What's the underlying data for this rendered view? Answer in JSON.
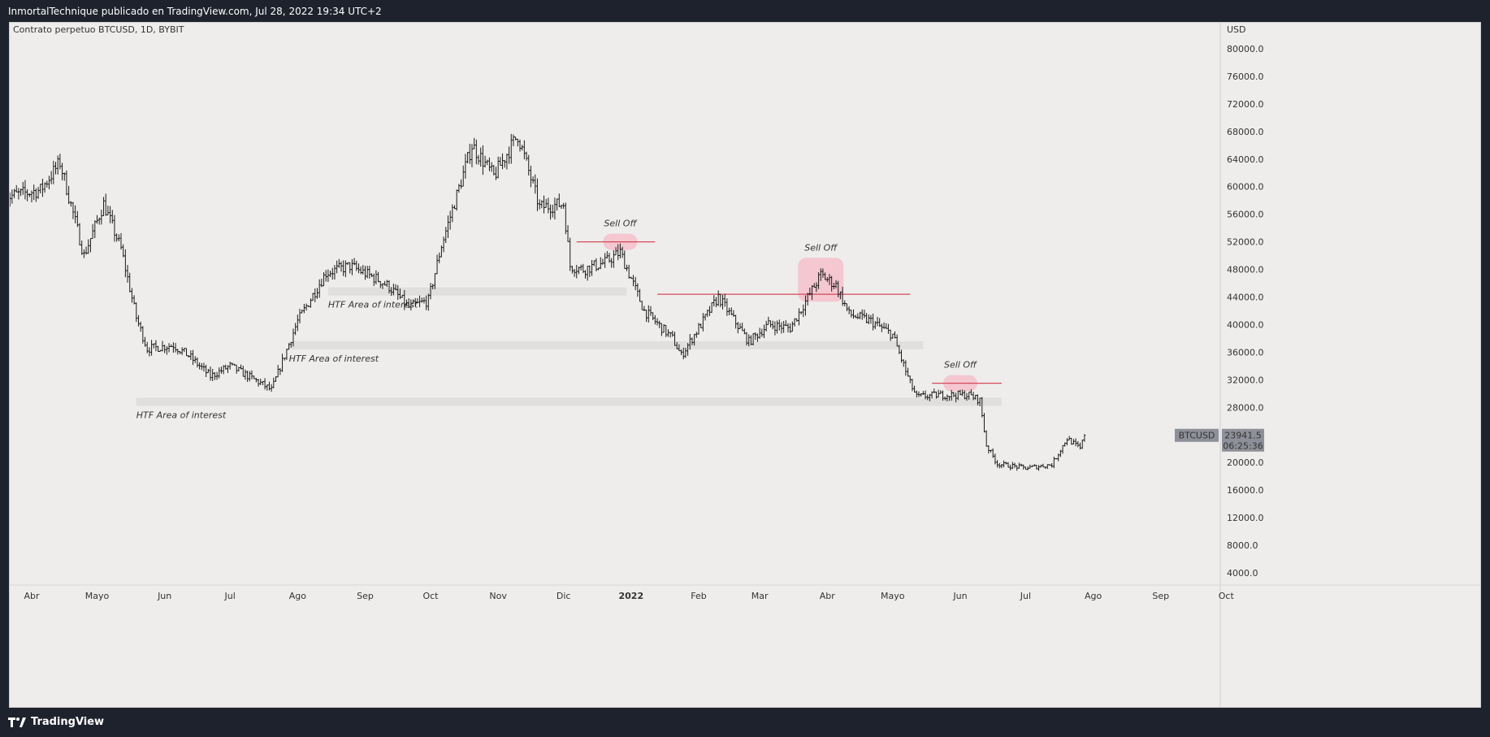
{
  "header": {
    "publisher_line": "InmortalTechnique publicado en TradingView.com, Jul 28, 2022 19:34 UTC+2"
  },
  "footer": {
    "brand": "TradingView",
    "brand_icon": "tradingview-logo-icon"
  },
  "chart_data": {
    "type": "line",
    "instrument_label": "Contrato perpetuo BTCUSD, 1D, BYBIT",
    "currency": "USD",
    "ylim": [
      0,
      84000
    ],
    "y_ticks": [
      4000,
      8000,
      12000,
      16000,
      20000,
      24000,
      28000,
      32000,
      36000,
      40000,
      44000,
      48000,
      52000,
      56000,
      60000,
      64000,
      68000,
      72000,
      76000,
      80000
    ],
    "y_tick_labels": [
      "4000.0",
      "8000.0",
      "12000.0",
      "16000.0",
      "20000.0",
      "",
      "28000.0",
      "32000.0",
      "36000.0",
      "40000.0",
      "44000.0",
      "48000.0",
      "52000.0",
      "56000.0",
      "60000.0",
      "64000.0",
      "68000.0",
      "72000.0",
      "76000.0",
      "80000.0"
    ],
    "x_ticks": [
      "2021-04-01",
      "2021-05-01",
      "2021-06-01",
      "2021-07-01",
      "2021-08-01",
      "2021-09-01",
      "2021-10-01",
      "2021-11-01",
      "2021-12-01",
      "2022-01-01",
      "2022-02-01",
      "2022-03-01",
      "2022-04-01",
      "2022-05-01",
      "2022-06-01",
      "2022-07-01",
      "2022-08-01",
      "2022-09-01",
      "2022-10-01"
    ],
    "x_tick_labels": [
      "Abr",
      "Mayo",
      "Jun",
      "Jul",
      "Ago",
      "Sep",
      "Oct",
      "Nov",
      "Dic",
      "2022",
      "Feb",
      "Mar",
      "Abr",
      "Mayo",
      "Jun",
      "Jul",
      "Ago",
      "Sep",
      "Oct"
    ],
    "x_bold_tick": "2022",
    "price_series": {
      "name": "BTCUSD",
      "x": [
        "2021-03-20",
        "2021-04-05",
        "2021-04-14",
        "2021-04-25",
        "2021-05-04",
        "2021-05-12",
        "2021-05-19",
        "2021-05-24",
        "2021-06-05",
        "2021-06-12",
        "2021-06-22",
        "2021-07-01",
        "2021-07-15",
        "2021-07-20",
        "2021-08-01",
        "2021-08-14",
        "2021-08-25",
        "2021-09-07",
        "2021-09-12",
        "2021-09-21",
        "2021-09-30",
        "2021-10-06",
        "2021-10-20",
        "2021-10-30",
        "2021-11-10",
        "2021-11-20",
        "2021-12-01",
        "2021-12-04",
        "2021-12-10",
        "2021-12-20",
        "2021-12-27",
        "2022-01-07",
        "2022-01-20",
        "2022-01-24",
        "2022-02-10",
        "2022-02-24",
        "2022-03-05",
        "2022-03-15",
        "2022-03-29",
        "2022-04-05",
        "2022-04-11",
        "2022-04-21",
        "2022-05-01",
        "2022-05-09",
        "2022-05-12",
        "2022-05-22",
        "2022-06-05",
        "2022-06-10",
        "2022-06-13",
        "2022-06-18",
        "2022-07-01",
        "2022-07-13",
        "2022-07-20",
        "2022-07-26",
        "2022-07-28"
      ],
      "values": [
        58500,
        59500,
        63500,
        50000,
        57500,
        51000,
        41000,
        36500,
        37000,
        35500,
        32500,
        34000,
        31500,
        30500,
        40500,
        47500,
        48500,
        46500,
        45500,
        42500,
        43500,
        51500,
        66000,
        61500,
        67500,
        57000,
        57500,
        48500,
        48000,
        49000,
        50500,
        42000,
        38000,
        35500,
        44000,
        37500,
        40000,
        39500,
        47200,
        45700,
        41500,
        40500,
        38500,
        31500,
        29500,
        29800,
        29800,
        29000,
        22500,
        19800,
        19200,
        19700,
        23500,
        22000,
        23941.5
      ]
    },
    "last_price": "23941.5",
    "countdown": "06:25:36",
    "zones": [
      {
        "label": "HTF Area of interest",
        "from": "2021-08-15",
        "to": "2021-12-30",
        "price": 44800
      },
      {
        "label": "HTF Area of interest",
        "from": "2021-07-28",
        "to": "2022-05-15",
        "price": 37000
      },
      {
        "label": "HTF Area of interest",
        "from": "2021-05-19",
        "to": "2022-06-20",
        "price": 28800
      }
    ],
    "resistance_lines": [
      {
        "from": "2021-12-07",
        "to": "2022-01-12",
        "price": 52000
      },
      {
        "from": "2022-01-13",
        "to": "2022-05-09",
        "price": 44400
      },
      {
        "from": "2022-05-19",
        "to": "2022-06-20",
        "price": 31500
      }
    ],
    "sell_offs": [
      {
        "label": "Sell Off",
        "date": "2021-12-27",
        "price": 52000
      },
      {
        "label": "Sell Off",
        "date": "2022-03-29",
        "price": 46500
      },
      {
        "label": "Sell Off",
        "date": "2022-06-01",
        "price": 31500
      }
    ],
    "colors": {
      "background": "#eeedeb",
      "bars": "#1a1a1a",
      "zone": "#e0dfdd",
      "resistance": "#d44a5a",
      "sell_off_highlight": "#f4c0cc",
      "annotation_text": "#777777",
      "price_label_bg": "#8e9099"
    }
  }
}
